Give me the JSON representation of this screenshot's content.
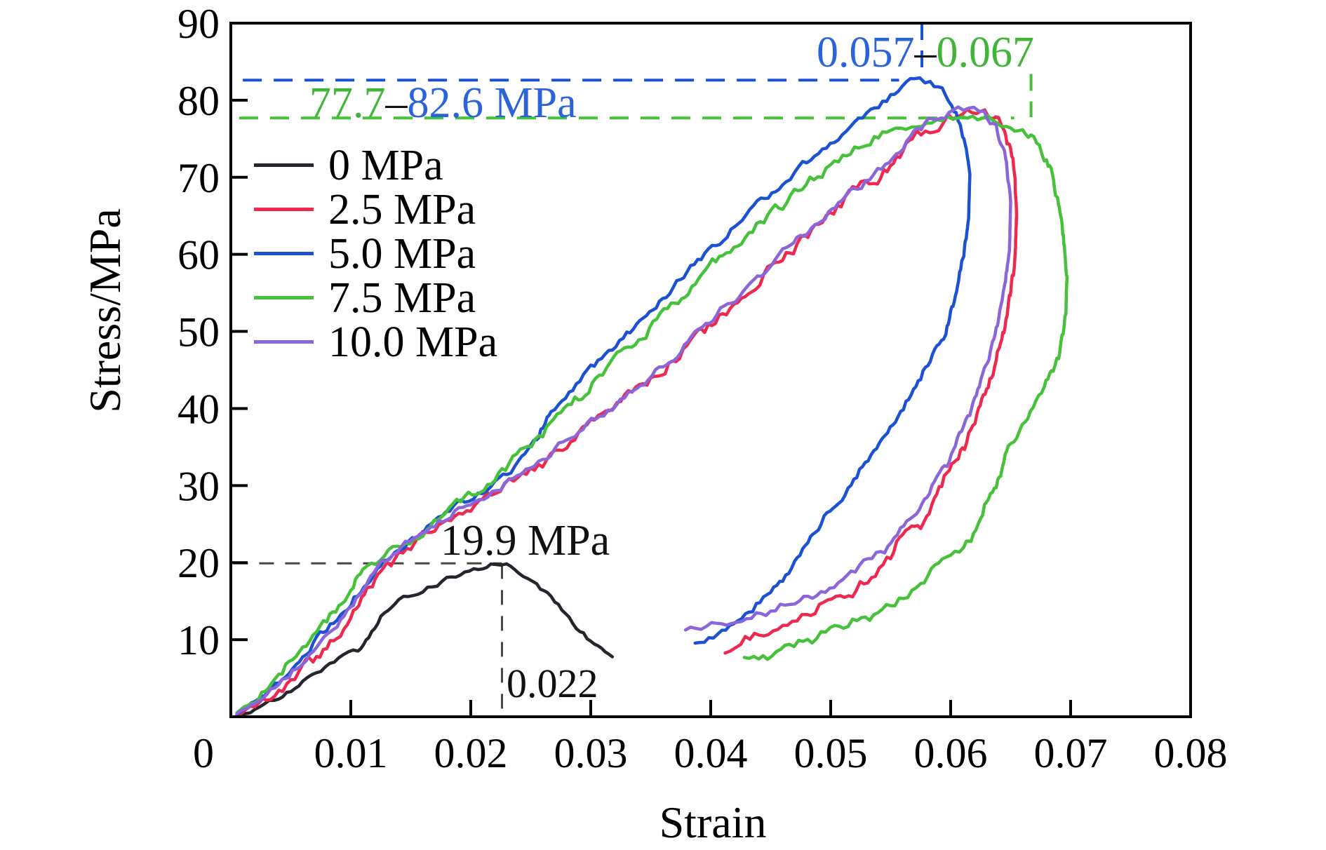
{
  "axes": {
    "x": {
      "label": "Strain",
      "min": 0,
      "max": 0.08,
      "tick_values": [
        0,
        0.01,
        0.02,
        0.03,
        0.04,
        0.05,
        0.06,
        0.07,
        0.08
      ],
      "tick_labels": [
        "0",
        "0.01",
        "0.02",
        "0.03",
        "0.04",
        "0.05",
        "0.06",
        "0.07",
        "0.08"
      ]
    },
    "y": {
      "label": "Stress/MPa",
      "min": 0,
      "max": 90,
      "tick_values": [
        10,
        20,
        30,
        40,
        50,
        60,
        70,
        80,
        90
      ],
      "tick_labels": [
        "10",
        "20",
        "30",
        "40",
        "50",
        "60",
        "70",
        "80",
        "90"
      ]
    }
  },
  "legend": {
    "items": [
      {
        "label": "0 MPa",
        "color": "#25252e"
      },
      {
        "label": "2.5 MPa",
        "color": "#ee2950"
      },
      {
        "label": "5.0 MPa",
        "color": "#1c52d2"
      },
      {
        "label": "7.5 MPa",
        "color": "#45c13a"
      },
      {
        "label": "10.0 MPa",
        "color": "#8b66da"
      }
    ]
  },
  "annotations": {
    "strain_range": {
      "parts": [
        {
          "text": "0.057",
          "color": "#2b63d9"
        },
        {
          "text": "–",
          "color": "#111111"
        },
        {
          "text": "0.067",
          "color": "#3fb637"
        }
      ]
    },
    "stress_range": {
      "parts": [
        {
          "text": "77.7",
          "color": "#3fb637"
        },
        {
          "text": "–",
          "color": "#111111"
        },
        {
          "text": "82.6 MPa",
          "color": "#2b63d9"
        }
      ]
    },
    "peak_0mpa": {
      "text": "19.9 MPa"
    },
    "strain_0mpa": {
      "text": "0.022"
    }
  },
  "guides": [
    {
      "id": "stress-max-blue",
      "orientation": "h",
      "value": 82.6,
      "from": 0.001,
      "to": 0.0557,
      "color": "#1c52d2",
      "dash": "27 17",
      "width": 4
    },
    {
      "id": "stress-max-green",
      "orientation": "h",
      "value": 77.7,
      "from": 0.0007,
      "to": 0.0653,
      "color": "#45c13a",
      "dash": "27 17",
      "width": 4
    },
    {
      "id": "strain-peak-blue",
      "orientation": "v",
      "value": 0.0576,
      "from": 90.0,
      "to": 82.9,
      "color": "#1c52d2",
      "dash": "24 15",
      "width": 4
    },
    {
      "id": "strain-peak-green",
      "orientation": "v",
      "value": 0.0667,
      "from": 83.4,
      "to": 77.8,
      "color": "#45c13a",
      "dash": "24 15",
      "width": 4
    },
    {
      "id": "stress-peak-0mpa",
      "orientation": "h",
      "value": 19.9,
      "from": 0.0002,
      "to": 0.0226,
      "color": "#414b41",
      "dash": "21 16",
      "width": 3
    },
    {
      "id": "strain-peak-0mpa",
      "orientation": "v",
      "value": 0.0226,
      "from": 19.8,
      "to": 0.9,
      "color": "#414b41",
      "dash": "21 16",
      "width": 3
    }
  ],
  "chart_data": {
    "type": "line",
    "title": "",
    "xlabel": "Strain",
    "ylabel": "Stress/MPa",
    "xlim": [
      0,
      0.08
    ],
    "ylim": [
      0,
      90
    ],
    "grid": false,
    "legend_position": "upper-left",
    "series": [
      {
        "name": "0 MPa",
        "color": "#25252e",
        "noise": 0.35,
        "peak_stress": 19.9,
        "peak_strain": 0.022,
        "points": [
          [
            0.0005,
            0.1
          ],
          [
            0.002,
            0.9
          ],
          [
            0.004,
            2.4
          ],
          [
            0.006,
            4.4
          ],
          [
            0.0075,
            6.0
          ],
          [
            0.009,
            7.6
          ],
          [
            0.0098,
            8.1
          ],
          [
            0.0106,
            8.5
          ],
          [
            0.0115,
            10.6
          ],
          [
            0.0125,
            13.0
          ],
          [
            0.014,
            14.8
          ],
          [
            0.016,
            16.4
          ],
          [
            0.018,
            17.8
          ],
          [
            0.0195,
            18.7
          ],
          [
            0.021,
            19.3
          ],
          [
            0.022,
            19.9
          ],
          [
            0.023,
            19.6
          ],
          [
            0.024,
            18.8
          ],
          [
            0.0255,
            17.2
          ],
          [
            0.027,
            14.8
          ],
          [
            0.0285,
            12.2
          ],
          [
            0.03,
            9.8
          ],
          [
            0.0312,
            8.1
          ],
          [
            0.0318,
            7.3
          ]
        ]
      },
      {
        "name": "2.5 MPa",
        "color": "#ee2950",
        "noise": 0.8,
        "peak_stress": 78.8,
        "peak_strain": 0.0625,
        "points": [
          [
            0.0005,
            0.2
          ],
          [
            0.002,
            1.5
          ],
          [
            0.004,
            3.6
          ],
          [
            0.006,
            6.2
          ],
          [
            0.008,
            9.2
          ],
          [
            0.01,
            12.6
          ],
          [
            0.0127,
            19.0
          ],
          [
            0.015,
            22.0
          ],
          [
            0.018,
            25.4
          ],
          [
            0.021,
            28.4
          ],
          [
            0.0243,
            31.0
          ],
          [
            0.027,
            34.0
          ],
          [
            0.03,
            37.6
          ],
          [
            0.0322,
            40.0
          ],
          [
            0.035,
            43.8
          ],
          [
            0.038,
            48.0
          ],
          [
            0.041,
            52.4
          ],
          [
            0.0438,
            56.4
          ],
          [
            0.0463,
            60.0
          ],
          [
            0.049,
            63.8
          ],
          [
            0.0515,
            67.4
          ],
          [
            0.0539,
            70.0
          ],
          [
            0.0555,
            72.5
          ],
          [
            0.0568,
            75.0
          ],
          [
            0.059,
            77.3
          ],
          [
            0.061,
            78.4
          ],
          [
            0.0625,
            78.8
          ],
          [
            0.0635,
            78.2
          ],
          [
            0.0645,
            76.0
          ],
          [
            0.0652,
            72.0
          ],
          [
            0.0655,
            66.0
          ],
          [
            0.0654,
            60.0
          ],
          [
            0.0648,
            53.0
          ],
          [
            0.0638,
            46.0
          ],
          [
            0.0622,
            39.0
          ],
          [
            0.0603,
            32.5
          ],
          [
            0.058,
            26.5
          ],
          [
            0.055,
            20.5
          ],
          [
            0.0515,
            16.0
          ],
          [
            0.048,
            13.2
          ],
          [
            0.0448,
            11.2
          ],
          [
            0.0425,
            9.8
          ],
          [
            0.0412,
            9.4
          ]
        ]
      },
      {
        "name": "5.0 MPa",
        "color": "#1c52d2",
        "noise": 0.5,
        "peak_stress": 82.6,
        "peak_strain": 0.057,
        "points": [
          [
            0.0005,
            0.3
          ],
          [
            0.002,
            2.0
          ],
          [
            0.004,
            4.8
          ],
          [
            0.006,
            8.0
          ],
          [
            0.008,
            11.4
          ],
          [
            0.01,
            15.0
          ],
          [
            0.0122,
            19.0
          ],
          [
            0.0145,
            22.4
          ],
          [
            0.017,
            25.2
          ],
          [
            0.0195,
            28.0
          ],
          [
            0.0217,
            30.0
          ],
          [
            0.024,
            32.8
          ],
          [
            0.0255,
            36.0
          ],
          [
            0.0267,
            40.0
          ],
          [
            0.03,
            45.0
          ],
          [
            0.033,
            49.6
          ],
          [
            0.036,
            54.4
          ],
          [
            0.0395,
            60.0
          ],
          [
            0.042,
            63.6
          ],
          [
            0.0445,
            67.2
          ],
          [
            0.0463,
            70.0
          ],
          [
            0.048,
            72.0
          ],
          [
            0.0503,
            75.0
          ],
          [
            0.053,
            78.2
          ],
          [
            0.055,
            80.6
          ],
          [
            0.0563,
            82.0
          ],
          [
            0.057,
            82.6
          ],
          [
            0.0583,
            82.2
          ],
          [
            0.0593,
            81.2
          ],
          [
            0.0601,
            79.5
          ],
          [
            0.0608,
            77.0
          ],
          [
            0.0613,
            74.0
          ],
          [
            0.0616,
            70.0
          ],
          [
            0.0615,
            65.0
          ],
          [
            0.0611,
            60.0
          ],
          [
            0.0604,
            55.0
          ],
          [
            0.0596,
            50.0
          ],
          [
            0.0583,
            46.0
          ],
          [
            0.0565,
            41.0
          ],
          [
            0.0543,
            35.5
          ],
          [
            0.0517,
            30.0
          ],
          [
            0.0492,
            25.0
          ],
          [
            0.047,
            20.0
          ],
          [
            0.045,
            16.0
          ],
          [
            0.0429,
            12.8
          ],
          [
            0.0406,
            10.4
          ],
          [
            0.0387,
            8.9
          ]
        ]
      },
      {
        "name": "7.5 MPa",
        "color": "#45c13a",
        "noise": 0.7,
        "peak_stress": 77.7,
        "peak_strain": 0.067,
        "points": [
          [
            0.0005,
            0.5
          ],
          [
            0.002,
            2.6
          ],
          [
            0.004,
            5.6
          ],
          [
            0.006,
            9.0
          ],
          [
            0.008,
            12.6
          ],
          [
            0.01,
            16.4
          ],
          [
            0.011,
            19.0
          ],
          [
            0.0135,
            21.5
          ],
          [
            0.016,
            24.0
          ],
          [
            0.0185,
            27.0
          ],
          [
            0.0211,
            30.0
          ],
          [
            0.0235,
            33.2
          ],
          [
            0.026,
            36.8
          ],
          [
            0.0281,
            40.0
          ],
          [
            0.031,
            44.5
          ],
          [
            0.034,
            49.0
          ],
          [
            0.037,
            53.6
          ],
          [
            0.041,
            60.0
          ],
          [
            0.0435,
            63.5
          ],
          [
            0.046,
            66.5
          ],
          [
            0.0486,
            70.0
          ],
          [
            0.051,
            72.6
          ],
          [
            0.0533,
            75.0
          ],
          [
            0.055,
            76.2
          ],
          [
            0.058,
            77.0
          ],
          [
            0.061,
            77.4
          ],
          [
            0.0635,
            77.3
          ],
          [
            0.065,
            77.2
          ],
          [
            0.066,
            76.4
          ],
          [
            0.0667,
            75.2
          ],
          [
            0.0674,
            73.8
          ],
          [
            0.068,
            72.2
          ],
          [
            0.0685,
            70.0
          ],
          [
            0.069,
            66.5
          ],
          [
            0.0694,
            62.0
          ],
          [
            0.0697,
            57.0
          ],
          [
            0.0696,
            52.0
          ],
          [
            0.069,
            47.0
          ],
          [
            0.0678,
            42.5
          ],
          [
            0.0662,
            38.5
          ],
          [
            0.0648,
            35.0
          ],
          [
            0.0638,
            30.0
          ],
          [
            0.0625,
            25.5
          ],
          [
            0.0611,
            21.7
          ],
          [
            0.06,
            20.5
          ],
          [
            0.0593,
            19.8
          ],
          [
            0.0575,
            17.0
          ],
          [
            0.055,
            14.5
          ],
          [
            0.0522,
            12.2
          ],
          [
            0.0492,
            10.4
          ],
          [
            0.0462,
            8.8
          ],
          [
            0.044,
            7.9
          ],
          [
            0.0428,
            7.5
          ]
        ]
      },
      {
        "name": "10.0 MPa",
        "color": "#8b66da",
        "noise": 0.55,
        "peak_stress": 79.0,
        "peak_strain": 0.0615,
        "points": [
          [
            0.0005,
            0.4
          ],
          [
            0.002,
            2.2
          ],
          [
            0.004,
            4.4
          ],
          [
            0.006,
            7.2
          ],
          [
            0.008,
            10.4
          ],
          [
            0.01,
            14.0
          ],
          [
            0.0119,
            19.0
          ],
          [
            0.0142,
            22.0
          ],
          [
            0.017,
            25.0
          ],
          [
            0.02,
            28.0
          ],
          [
            0.0232,
            30.5
          ],
          [
            0.026,
            33.6
          ],
          [
            0.029,
            37.0
          ],
          [
            0.0318,
            40.2
          ],
          [
            0.0348,
            44.0
          ],
          [
            0.0378,
            48.2
          ],
          [
            0.0408,
            52.6
          ],
          [
            0.0436,
            56.6
          ],
          [
            0.046,
            60.0
          ],
          [
            0.0487,
            63.8
          ],
          [
            0.0512,
            67.6
          ],
          [
            0.0536,
            70.4
          ],
          [
            0.0552,
            72.8
          ],
          [
            0.0566,
            75.2
          ],
          [
            0.0585,
            77.6
          ],
          [
            0.0602,
            78.8
          ],
          [
            0.0615,
            79.0
          ],
          [
            0.0628,
            78.5
          ],
          [
            0.0638,
            76.5
          ],
          [
            0.0646,
            72.5
          ],
          [
            0.065,
            66.5
          ],
          [
            0.0649,
            60.5
          ],
          [
            0.0643,
            53.5
          ],
          [
            0.0632,
            46.5
          ],
          [
            0.0616,
            39.5
          ],
          [
            0.0597,
            33.0
          ],
          [
            0.0574,
            27.0
          ],
          [
            0.0545,
            21.5
          ],
          [
            0.051,
            17.8
          ],
          [
            0.0474,
            15.0
          ],
          [
            0.0438,
            13.0
          ],
          [
            0.0405,
            11.6
          ],
          [
            0.0379,
            10.9
          ]
        ]
      }
    ]
  }
}
